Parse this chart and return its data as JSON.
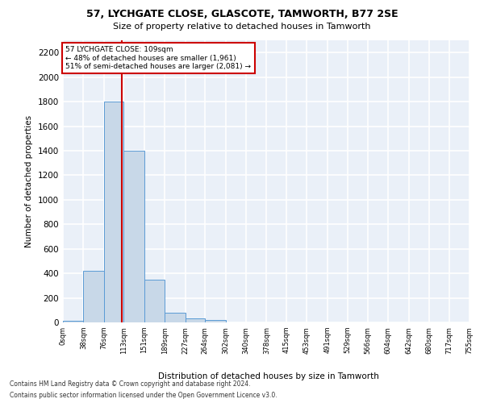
{
  "title1": "57, LYCHGATE CLOSE, GLASCOTE, TAMWORTH, B77 2SE",
  "title2": "Size of property relative to detached houses in Tamworth",
  "xlabel": "Distribution of detached houses by size in Tamworth",
  "ylabel": "Number of detached properties",
  "footer1": "Contains HM Land Registry data © Crown copyright and database right 2024.",
  "footer2": "Contains public sector information licensed under the Open Government Licence v3.0.",
  "property_size": 109,
  "property_label": "57 LYCHGATE CLOSE: 109sqm",
  "pct_smaller": 48,
  "n_smaller": 1961,
  "pct_larger": 51,
  "n_larger": 2081,
  "bin_edges": [
    0,
    38,
    76,
    113,
    151,
    189,
    227,
    264,
    302,
    340,
    378,
    415,
    453,
    491,
    529,
    566,
    604,
    642,
    680,
    717,
    755
  ],
  "bar_heights": [
    15,
    420,
    1800,
    1400,
    350,
    80,
    30,
    20,
    0,
    0,
    0,
    0,
    0,
    0,
    0,
    0,
    0,
    0,
    0,
    0
  ],
  "bar_color": "#c8d8e8",
  "bar_edge_color": "#5b9bd5",
  "vline_color": "#cc0000",
  "vline_x": 109,
  "plot_bg_color": "#eaf0f8",
  "grid_color": "#ffffff",
  "annotation_box_edge": "#cc0000",
  "ylim": [
    0,
    2300
  ],
  "yticks": [
    0,
    200,
    400,
    600,
    800,
    1000,
    1200,
    1400,
    1600,
    1800,
    2000,
    2200
  ]
}
